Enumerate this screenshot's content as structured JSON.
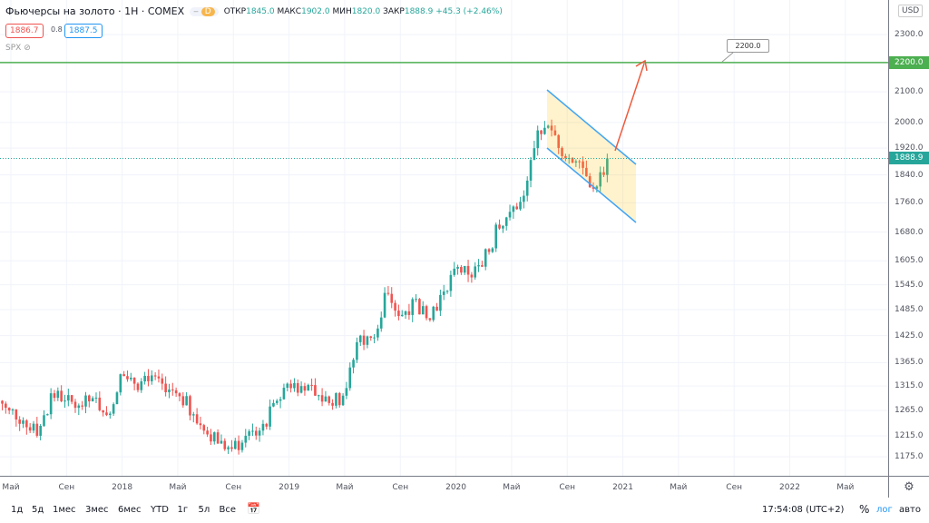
{
  "header": {
    "title": "Фьючерсы на золото · 1H · COMEX",
    "interval_badge": "D",
    "ohlc": [
      {
        "k": "ОТКР",
        "v": "1845.0"
      },
      {
        "k": "МАКС",
        "v": "1902.0"
      },
      {
        "k": "МИН",
        "v": "1820.0"
      },
      {
        "k": "ЗАКР",
        "v": "1888.9"
      }
    ],
    "change": "+45.3 (+2.46%)",
    "bid": "1886.7",
    "spread": "0.8",
    "ask": "1887.5",
    "compare_symbol": "SPX"
  },
  "price_axis": {
    "currency": "USD",
    "labels": [
      "2300.0",
      "2100.0",
      "2000.0",
      "1920.0",
      "1840.0",
      "1760.0",
      "1680.0",
      "1605.0",
      "1545.0",
      "1485.0",
      "1425.0",
      "1365.0",
      "1315.0",
      "1265.0",
      "1215.0",
      "1175.0"
    ],
    "horizontal_line_label": "2200.0",
    "last_price_label": "1888.9"
  },
  "drawings": {
    "callout_text": "2200.0"
  },
  "time_axis": {
    "labels": [
      "Май",
      "Сен",
      "2018",
      "Май",
      "Сен",
      "2019",
      "Май",
      "Сен",
      "2020",
      "Май",
      "Сен",
      "2021",
      "Май",
      "Сен",
      "2022",
      "Май"
    ]
  },
  "bottom_bar": {
    "ranges": [
      "1д",
      "5д",
      "1мес",
      "3мес",
      "6мес",
      "YTD",
      "1г",
      "5л",
      "Все"
    ],
    "clock": "17:54:08 (UTC+2)",
    "percent": "%",
    "log": "лог",
    "auto": "авто"
  },
  "colors": {
    "up": "#26a69a",
    "down": "#ef5350",
    "hline": "#4caf50",
    "channel": "#42a5f5",
    "arrow": "#ef5a3c"
  },
  "chart_data": {
    "type": "candlestick",
    "scale": "log",
    "start": "2017-05",
    "monthly_close": [
      1265,
      1245,
      1215,
      1300,
      1285,
      1275,
      1290,
      1256,
      1340,
      1320,
      1325,
      1320,
      1300,
      1255,
      1225,
      1200,
      1190,
      1215,
      1225,
      1280,
      1320,
      1315,
      1295,
      1280,
      1295,
      1410,
      1420,
      1525,
      1470,
      1510,
      1465,
      1520,
      1585,
      1570,
      1590,
      1700,
      1735,
      1780,
      1975,
      1975,
      1890,
      1880,
      1800,
      1888.9
    ],
    "ylim": [
      1160,
      2400
    ]
  }
}
